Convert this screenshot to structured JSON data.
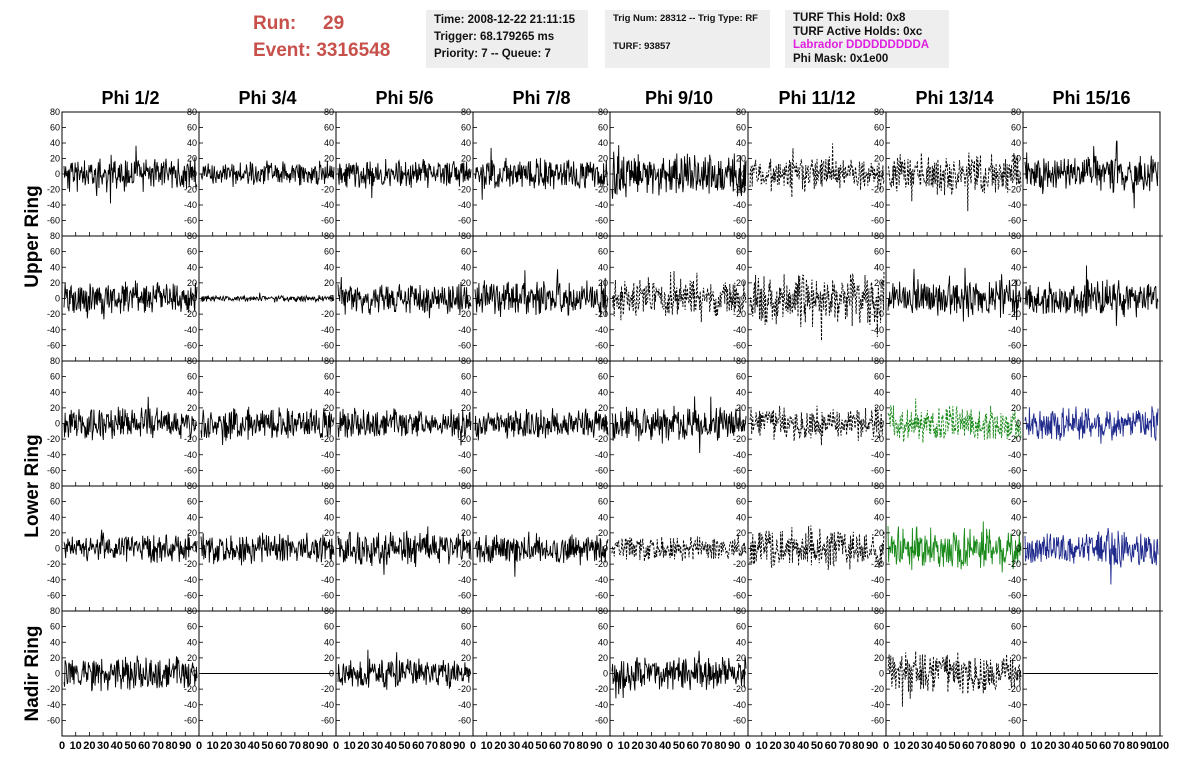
{
  "header": {
    "run_label": "Run:",
    "run_value": "29",
    "event_label": "Event:",
    "event_value": "3316548",
    "time_line": "Time: 2008-12-22 21:11:15",
    "trigger_line": "Trigger: 68.179265 ms",
    "priority_line": "Priority: 7 -- Queue: 7",
    "trig_line": "Trig Num: 28312 -- Trig Type: RF",
    "turf_line": "TURF: 93857",
    "turf_hold": "TURF This Hold: 0x8",
    "turf_active": "TURF Active Holds: 0xc",
    "labrador": "Labrador DDDDDDDDDA",
    "phi_mask": "Phi Mask: 0x1e00"
  },
  "colors": {
    "run_text": "#c8504b",
    "labrador_text": "#e020e0",
    "trace_black": "#000000",
    "trace_green": "#1a8a1a",
    "trace_blue": "#1f2a8c",
    "panel_bg": "#eeeeee"
  },
  "grid": {
    "column_titles": [
      "Phi 1/2",
      "Phi 3/4",
      "Phi 5/6",
      "Phi 7/8",
      "Phi 9/10",
      "Phi 11/12",
      "Phi 13/14",
      "Phi 15/16"
    ],
    "ring_labels": [
      "Upper Ring",
      "Lower Ring",
      "Nadir Ring"
    ],
    "y_ticks": [
      "80",
      "60",
      "40",
      "20",
      "0",
      "-20",
      "-40",
      "-60"
    ],
    "y_range": [
      -80,
      80
    ],
    "x_range": [
      0,
      100
    ],
    "x_tick_labels": [
      "0",
      "10",
      "20",
      "30",
      "40",
      "50",
      "60",
      "70",
      "80",
      "90",
      "0",
      "10",
      "20",
      "30",
      "40",
      "50",
      "60",
      "70",
      "80",
      "90",
      "0",
      "10",
      "20",
      "30",
      "40",
      "50",
      "60",
      "70",
      "80",
      "90",
      "0",
      "10",
      "20",
      "30",
      "40",
      "50",
      "60",
      "70",
      "80",
      "90",
      "0",
      "10",
      "20",
      "30",
      "40",
      "50",
      "60",
      "70",
      "80",
      "90",
      "0",
      "10",
      "20",
      "30",
      "40",
      "50",
      "60",
      "70",
      "80",
      "90",
      "0",
      "10",
      "20",
      "30",
      "40",
      "50",
      "60",
      "70",
      "80",
      "90",
      "0",
      "10",
      "20",
      "30",
      "40",
      "50",
      "60",
      "70",
      "80",
      "90",
      "100"
    ]
  },
  "traces": [
    {
      "row": 0,
      "col": 0,
      "style": "solid",
      "color": "black",
      "amp": 17,
      "seed": 11
    },
    {
      "row": 0,
      "col": 1,
      "style": "solid",
      "color": "black",
      "amp": 12,
      "seed": 12
    },
    {
      "row": 0,
      "col": 2,
      "style": "solid",
      "color": "black",
      "amp": 14,
      "seed": 13
    },
    {
      "row": 0,
      "col": 3,
      "style": "solid",
      "color": "black",
      "amp": 15,
      "seed": 14
    },
    {
      "row": 0,
      "col": 4,
      "style": "solid",
      "color": "black",
      "amp": 22,
      "seed": 15
    },
    {
      "row": 0,
      "col": 5,
      "style": "dashed",
      "color": "black",
      "amp": 16,
      "seed": 16
    },
    {
      "row": 0,
      "col": 6,
      "style": "dashed",
      "color": "black",
      "amp": 20,
      "seed": 17
    },
    {
      "row": 0,
      "col": 7,
      "style": "solid",
      "color": "black",
      "amp": 18,
      "seed": 18
    },
    {
      "row": 1,
      "col": 0,
      "style": "solid",
      "color": "black",
      "amp": 16,
      "seed": 21
    },
    {
      "row": 1,
      "col": 1,
      "style": "solid",
      "color": "black",
      "amp": 3,
      "seed": 22
    },
    {
      "row": 1,
      "col": 2,
      "style": "solid",
      "color": "black",
      "amp": 15,
      "seed": 23
    },
    {
      "row": 1,
      "col": 3,
      "style": "solid",
      "color": "black",
      "amp": 17,
      "seed": 24
    },
    {
      "row": 1,
      "col": 4,
      "style": "dashed",
      "color": "black",
      "amp": 18,
      "seed": 25
    },
    {
      "row": 1,
      "col": 5,
      "style": "dashed",
      "color": "black",
      "amp": 26,
      "seed": 26
    },
    {
      "row": 1,
      "col": 6,
      "style": "solid",
      "color": "black",
      "amp": 17,
      "seed": 27
    },
    {
      "row": 1,
      "col": 7,
      "style": "solid",
      "color": "black",
      "amp": 17,
      "seed": 28
    },
    {
      "row": 2,
      "col": 0,
      "style": "solid",
      "color": "black",
      "amp": 15,
      "seed": 31
    },
    {
      "row": 2,
      "col": 1,
      "style": "solid",
      "color": "black",
      "amp": 15,
      "seed": 32
    },
    {
      "row": 2,
      "col": 2,
      "style": "solid",
      "color": "black",
      "amp": 14,
      "seed": 33
    },
    {
      "row": 2,
      "col": 3,
      "style": "solid",
      "color": "black",
      "amp": 14,
      "seed": 34
    },
    {
      "row": 2,
      "col": 4,
      "style": "solid",
      "color": "black",
      "amp": 16,
      "seed": 35
    },
    {
      "row": 2,
      "col": 5,
      "style": "dashed",
      "color": "black",
      "amp": 16,
      "seed": 36
    },
    {
      "row": 2,
      "col": 6,
      "style": "dashed",
      "color": "green",
      "amp": 18,
      "seed": 37
    },
    {
      "row": 2,
      "col": 7,
      "style": "solid",
      "color": "blue",
      "amp": 16,
      "seed": 38
    },
    {
      "row": 3,
      "col": 0,
      "style": "solid",
      "color": "black",
      "amp": 13,
      "seed": 41
    },
    {
      "row": 3,
      "col": 1,
      "style": "solid",
      "color": "black",
      "amp": 14,
      "seed": 42
    },
    {
      "row": 3,
      "col": 2,
      "style": "solid",
      "color": "black",
      "amp": 16,
      "seed": 43
    },
    {
      "row": 3,
      "col": 3,
      "style": "solid",
      "color": "black",
      "amp": 15,
      "seed": 44
    },
    {
      "row": 3,
      "col": 4,
      "style": "dashed",
      "color": "black",
      "amp": 12,
      "seed": 45
    },
    {
      "row": 3,
      "col": 5,
      "style": "dashed",
      "color": "black",
      "amp": 19,
      "seed": 46
    },
    {
      "row": 3,
      "col": 6,
      "style": "solid",
      "color": "green",
      "amp": 20,
      "seed": 47
    },
    {
      "row": 3,
      "col": 7,
      "style": "solid",
      "color": "blue",
      "amp": 18,
      "seed": 48
    },
    {
      "row": 4,
      "col": 0,
      "style": "solid",
      "color": "black",
      "amp": 16,
      "seed": 51
    },
    {
      "row": 4,
      "col": 1,
      "style": "flat",
      "color": "black",
      "amp": 0,
      "seed": 52
    },
    {
      "row": 4,
      "col": 2,
      "style": "solid",
      "color": "black",
      "amp": 14,
      "seed": 53
    },
    {
      "row": 4,
      "col": 3,
      "style": "none",
      "color": "black",
      "amp": 0,
      "seed": 54
    },
    {
      "row": 4,
      "col": 4,
      "style": "solid",
      "color": "black",
      "amp": 16,
      "seed": 55
    },
    {
      "row": 4,
      "col": 5,
      "style": "none",
      "color": "black",
      "amp": 0,
      "seed": 56
    },
    {
      "row": 4,
      "col": 6,
      "style": "dashed",
      "color": "black",
      "amp": 20,
      "seed": 57
    },
    {
      "row": 4,
      "col": 7,
      "style": "flat",
      "color": "black",
      "amp": 0,
      "seed": 58
    }
  ]
}
